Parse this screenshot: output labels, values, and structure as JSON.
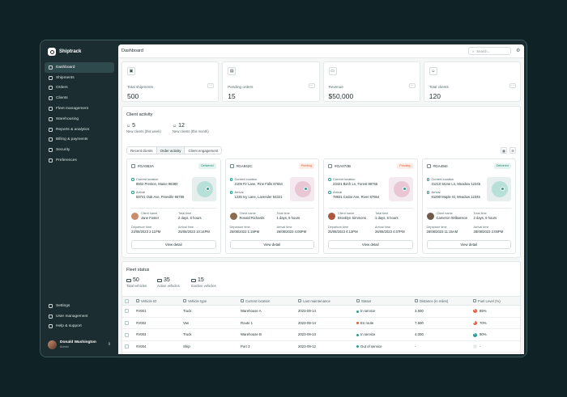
{
  "brand": {
    "name": "Shiptrack"
  },
  "sidebar": {
    "items": [
      {
        "label": "Dashboard",
        "icon": "grid-icon"
      },
      {
        "label": "Shipments",
        "icon": "box-icon"
      },
      {
        "label": "Orders",
        "icon": "cart-icon"
      },
      {
        "label": "Clients",
        "icon": "users-icon"
      },
      {
        "label": "Fleet management",
        "icon": "truck-icon"
      },
      {
        "label": "Warehousing",
        "icon": "warehouse-icon"
      },
      {
        "label": "Reports & analytics",
        "icon": "chart-icon"
      },
      {
        "label": "Billing & payments",
        "icon": "card-icon"
      },
      {
        "label": "Security",
        "icon": "shield-icon"
      },
      {
        "label": "Preferences",
        "icon": "sliders-icon"
      }
    ],
    "bottom": [
      {
        "label": "Settings",
        "icon": "gear-icon"
      },
      {
        "label": "User management",
        "icon": "user-icon"
      },
      {
        "label": "Help & support",
        "icon": "help-icon"
      }
    ],
    "user": {
      "name": "Donald Washington",
      "role": "Admin"
    }
  },
  "header": {
    "title": "Dashboard",
    "search_placeholder": "Search..."
  },
  "stats": [
    {
      "label": "Total shipments",
      "value": "500"
    },
    {
      "label": "Pending orders",
      "value": "15"
    },
    {
      "label": "Revenue",
      "value": "$50,000"
    },
    {
      "label": "Total clients",
      "value": "120"
    }
  ],
  "client_activity": {
    "title": "Client activity",
    "new_week": {
      "value": "5",
      "label": "New clients (this week)"
    },
    "new_month": {
      "value": "12",
      "label": "New clients (this month)"
    },
    "tabs": [
      "Recent clients",
      "Order activity",
      "Client engagement"
    ],
    "labels": {
      "current_location": "Current location",
      "arrival": "Arrival",
      "client_name": "Client name",
      "total_time": "Total time",
      "departure_time": "Departure time",
      "arrival_time": "Arrival time",
      "view_detail": "View detail"
    },
    "cards": [
      {
        "id": "#GA553A",
        "status": "Delivered",
        "current": "8502 Preston, Maine 98380",
        "arrival": "58741 Oak Ave, Pineville 96785",
        "client": "Jane Foster",
        "total": "2 days, 6 hours",
        "departure_time": "23/08/2023 2:11PM",
        "arrival_time": "25/08/2023 10:14PM"
      },
      {
        "id": "#GA942C",
        "status": "Pending",
        "current": "2109 Fir Lane, Pine Falls 87654",
        "arrival": "1235 Ivy Lane, Lavender 54321",
        "client": "Ronald Richards",
        "total": "1 days, 6 hours",
        "departure_time": "25/08/2023 1:15PM",
        "arrival_time": "26/08/2023 4:05PM"
      },
      {
        "id": "#GA074B",
        "status": "Pending",
        "current": "23421 Birch Ln, Forest 88765",
        "arrival": "78931 Cedar Ave, River 87654",
        "client": "Brooklyn Simmons",
        "total": "1 days, 6 hours",
        "departure_time": "25/08/2023 4:12PM",
        "arrival_time": "26/08/2023 4:07PM"
      },
      {
        "id": "#GA494I",
        "status": "Delivered",
        "current": "31210 Stone Ln, Meadow 12345",
        "arrival": "81290 Maple St, Meadow 12345",
        "client": "Cameron Williamson",
        "total": "2 days, 6 hours",
        "departure_time": "26/08/2023 11:15AM",
        "arrival_time": "28/08/2023 2:05PM"
      }
    ]
  },
  "fleet": {
    "title": "Fleet status",
    "total": {
      "value": "50",
      "label": "Total vehicles"
    },
    "active": {
      "value": "35",
      "label": "Active vehicles"
    },
    "inactive": {
      "value": "15",
      "label": "Inactive vehicles"
    },
    "columns": [
      "Vehicle ID",
      "Vehicle type",
      "Current location",
      "Last maintenance",
      "Status",
      "Distance (in miles)",
      "Fuel Level (%)"
    ],
    "rows": [
      {
        "id": "#V001",
        "type": "Truck",
        "location": "Warehouse A",
        "maint": "2023-09-14",
        "status": "In service",
        "status_color": "#2a9d8f",
        "distance": "3,500",
        "fuel": "85%",
        "fuel_color": "#e0603d"
      },
      {
        "id": "#V002",
        "type": "Van",
        "location": "Route 1",
        "maint": "2023-09-14",
        "status": "En route",
        "status_color": "#e0603d",
        "distance": "7,500",
        "fuel": "70%",
        "fuel_color": "#e0603d"
      },
      {
        "id": "#V003",
        "type": "Truck",
        "location": "Warehouse B",
        "maint": "2023-09-13",
        "status": "In service",
        "status_color": "#2a9d8f",
        "distance": "4,000",
        "fuel": "90%",
        "fuel_color": "#2a9d8f"
      },
      {
        "id": "#V004",
        "type": "Ship",
        "location": "Port 3",
        "maint": "2023-09-12",
        "status": "Out of service",
        "status_color": "#2a9d8f",
        "distance": "-",
        "fuel": "-",
        "fuel_color": "#c9d2d3"
      }
    ]
  }
}
